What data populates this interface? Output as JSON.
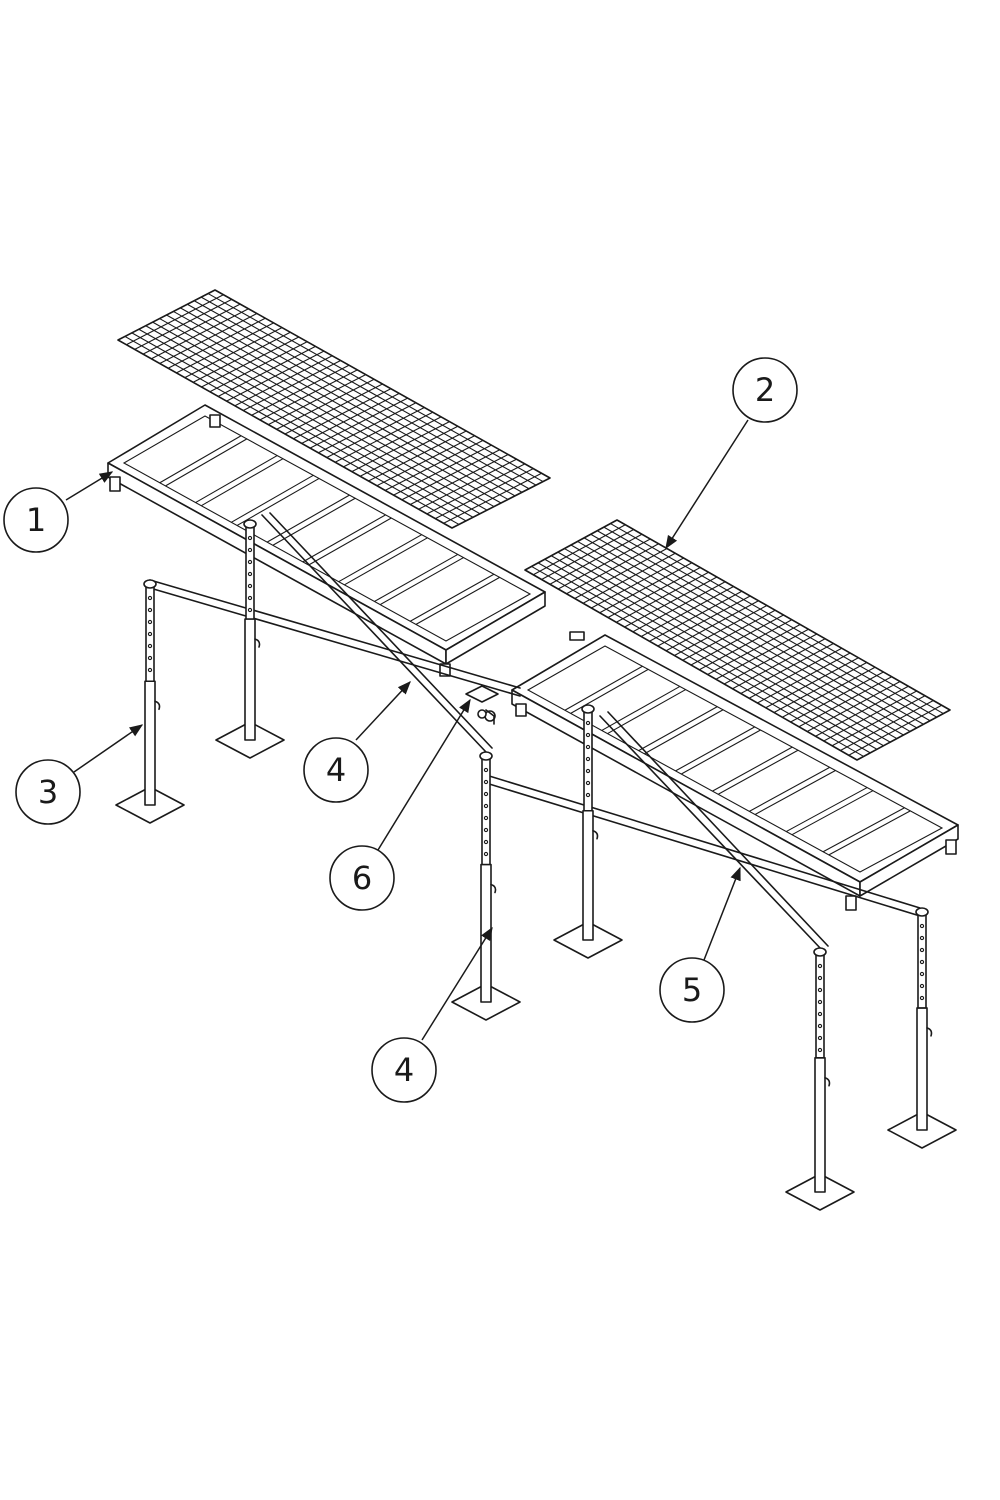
{
  "callouts": [
    {
      "id": "c1",
      "label": "1"
    },
    {
      "id": "c2",
      "label": "2"
    },
    {
      "id": "c3",
      "label": "3"
    },
    {
      "id": "c4a",
      "label": "4"
    },
    {
      "id": "c6",
      "label": "6"
    },
    {
      "id": "c5",
      "label": "5"
    },
    {
      "id": "c4b",
      "label": "4"
    }
  ],
  "colors": {
    "line": "#1a1a1a",
    "background": "#ffffff"
  }
}
